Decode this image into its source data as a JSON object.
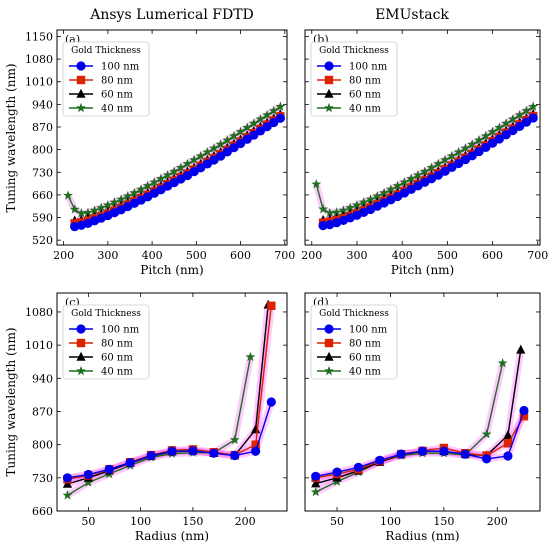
{
  "column_titles": [
    "Ansys Lumerical FDTD",
    "EMUstack"
  ],
  "legend": {
    "title": "Gold Thickness",
    "entries": [
      "100 nm",
      "80 nm",
      "60 nm",
      "40 nm"
    ]
  },
  "colors": {
    "100 nm": "#0000ee",
    "80 nm": "#dd2200",
    "60 nm": "#000000",
    "40 nm": "#1e6e1e",
    "highlight": "#ff66ff"
  },
  "chart_data": [
    {
      "panel": "(a)",
      "type": "line",
      "title": "Ansys Lumerical FDTD",
      "xlabel": "Pitch (nm)",
      "ylabel": "Tuning wavelength (nm)",
      "xlim": [
        185,
        705
      ],
      "ylim": [
        505,
        1170
      ],
      "xticks": [
        200,
        300,
        400,
        500,
        600,
        700
      ],
      "yticks": [
        520,
        590,
        660,
        730,
        800,
        870,
        940,
        1010,
        1080,
        1150
      ],
      "series": [
        {
          "name": "100 nm",
          "marker": "circle",
          "x": [
            225,
            240,
            255,
            270,
            285,
            300,
            315,
            330,
            345,
            360,
            375,
            390,
            405,
            420,
            435,
            450,
            465,
            480,
            495,
            510,
            525,
            540,
            555,
            570,
            585,
            600,
            615,
            630,
            645,
            660,
            675,
            690
          ],
          "y": [
            562,
            566,
            572,
            580,
            588,
            596,
            605,
            614,
            624,
            634,
            644,
            654,
            665,
            676,
            687,
            698,
            709,
            720,
            732,
            744,
            756,
            768,
            780,
            793,
            806,
            819,
            832,
            845,
            858,
            871,
            884,
            897
          ]
        },
        {
          "name": "80 nm",
          "marker": "square",
          "x": [
            225,
            240,
            255,
            270,
            285,
            300,
            315,
            330,
            345,
            360,
            375,
            390,
            405,
            420,
            435,
            450,
            465,
            480,
            495,
            510,
            525,
            540,
            555,
            570,
            585,
            600,
            615,
            630,
            645,
            660,
            675,
            690
          ],
          "y": [
            572,
            575,
            580,
            587,
            594,
            602,
            611,
            620,
            630,
            640,
            650,
            660,
            671,
            682,
            693,
            704,
            715,
            726,
            738,
            750,
            762,
            774,
            786,
            799,
            812,
            825,
            838,
            851,
            864,
            877,
            890,
            903
          ]
        },
        {
          "name": "60 nm",
          "marker": "triangle",
          "x": [
            225,
            240,
            255,
            270,
            285,
            300,
            315,
            330,
            345,
            360,
            375,
            390,
            405,
            420,
            435,
            450,
            465,
            480,
            495,
            510,
            525,
            540,
            555,
            570,
            585,
            600,
            615,
            630,
            645,
            660,
            675,
            690
          ],
          "y": [
            580,
            582,
            587,
            593,
            600,
            608,
            617,
            626,
            636,
            646,
            656,
            666,
            677,
            688,
            699,
            710,
            721,
            732,
            744,
            756,
            768,
            780,
            792,
            805,
            818,
            831,
            844,
            857,
            870,
            883,
            896,
            909
          ]
        },
        {
          "name": "40 nm",
          "marker": "star",
          "x": [
            210,
            225,
            240,
            255,
            270,
            285,
            300,
            315,
            330,
            345,
            360,
            375,
            390,
            405,
            420,
            435,
            450,
            465,
            480,
            495,
            510,
            525,
            540,
            555,
            570,
            585,
            600,
            615,
            630,
            645,
            660,
            675,
            690
          ],
          "y": [
            658,
            615,
            603,
            605,
            612,
            620,
            628,
            637,
            646,
            656,
            666,
            677,
            688,
            699,
            710,
            721,
            732,
            744,
            756,
            768,
            780,
            792,
            804,
            816,
            829,
            842,
            855,
            868,
            881,
            894,
            907,
            920,
            933
          ]
        }
      ]
    },
    {
      "panel": "(b)",
      "type": "line",
      "title": "EMUstack",
      "xlabel": "Pitch (nm)",
      "ylabel": "",
      "xlim": [
        185,
        705
      ],
      "ylim": [
        505,
        1170
      ],
      "xticks": [
        200,
        300,
        400,
        500,
        600,
        700
      ],
      "yticks": [],
      "series": [
        {
          "name": "100 nm",
          "marker": "circle",
          "x": [
            225,
            240,
            255,
            270,
            285,
            300,
            315,
            330,
            345,
            360,
            375,
            390,
            405,
            420,
            435,
            450,
            465,
            480,
            495,
            510,
            525,
            540,
            555,
            570,
            585,
            600,
            615,
            630,
            645,
            660,
            675,
            690
          ],
          "y": [
            565,
            568,
            574,
            581,
            589,
            597,
            606,
            615,
            625,
            635,
            645,
            655,
            666,
            677,
            688,
            699,
            710,
            721,
            733,
            745,
            757,
            769,
            781,
            794,
            807,
            820,
            833,
            846,
            859,
            872,
            885,
            898
          ]
        },
        {
          "name": "80 nm",
          "marker": "square",
          "x": [
            225,
            240,
            255,
            270,
            285,
            300,
            315,
            330,
            345,
            360,
            375,
            390,
            405,
            420,
            435,
            450,
            465,
            480,
            495,
            510,
            525,
            540,
            555,
            570,
            585,
            600,
            615,
            630,
            645,
            660,
            675,
            690
          ],
          "y": [
            574,
            577,
            582,
            588,
            595,
            603,
            612,
            621,
            631,
            641,
            651,
            661,
            672,
            683,
            694,
            705,
            716,
            727,
            739,
            751,
            763,
            775,
            787,
            800,
            813,
            826,
            839,
            852,
            865,
            878,
            891,
            904
          ]
        },
        {
          "name": "60 nm",
          "marker": "triangle",
          "x": [
            225,
            240,
            255,
            270,
            285,
            300,
            315,
            330,
            345,
            360,
            375,
            390,
            405,
            420,
            435,
            450,
            465,
            480,
            495,
            510,
            525,
            540,
            555,
            570,
            585,
            600,
            615,
            630,
            645,
            660,
            675,
            690
          ],
          "y": [
            582,
            584,
            588,
            594,
            601,
            609,
            618,
            627,
            637,
            647,
            657,
            667,
            678,
            689,
            700,
            711,
            722,
            733,
            745,
            757,
            769,
            781,
            793,
            806,
            819,
            832,
            845,
            858,
            871,
            884,
            897,
            910
          ]
        },
        {
          "name": "40 nm",
          "marker": "star",
          "x": [
            210,
            225,
            240,
            255,
            270,
            285,
            300,
            315,
            330,
            345,
            360,
            375,
            390,
            405,
            420,
            435,
            450,
            465,
            480,
            495,
            510,
            525,
            540,
            555,
            570,
            585,
            600,
            615,
            630,
            645,
            660,
            675,
            690
          ],
          "y": [
            693,
            616,
            604,
            606,
            612,
            620,
            628,
            637,
            646,
            656,
            666,
            677,
            688,
            699,
            710,
            721,
            732,
            744,
            756,
            768,
            780,
            792,
            804,
            816,
            829,
            842,
            855,
            868,
            881,
            894,
            907,
            920,
            933
          ]
        }
      ]
    },
    {
      "panel": "(c)",
      "type": "line",
      "title": "",
      "xlabel": "Radius (nm)",
      "ylabel": "Tuning wavelength (nm)",
      "xlim": [
        20,
        240
      ],
      "ylim": [
        660,
        1120
      ],
      "xticks": [
        50,
        100,
        150,
        200
      ],
      "yticks": [
        660,
        730,
        800,
        870,
        940,
        1010,
        1080
      ],
      "series": [
        {
          "name": "100 nm",
          "marker": "circle",
          "x": [
            30,
            50,
            70,
            90,
            110,
            130,
            150,
            170,
            190,
            210,
            225
          ],
          "y": [
            730,
            737,
            748,
            762,
            777,
            786,
            787,
            782,
            777,
            786,
            890
          ]
        },
        {
          "name": "80 nm",
          "marker": "square",
          "x": [
            30,
            50,
            70,
            90,
            110,
            130,
            150,
            170,
            190,
            210,
            225
          ],
          "y": [
            727,
            735,
            748,
            763,
            778,
            788,
            790,
            784,
            778,
            800,
            1093
          ]
        },
        {
          "name": "60 nm",
          "marker": "triangle",
          "x": [
            30,
            50,
            70,
            90,
            110,
            130,
            150,
            170,
            190,
            210,
            222
          ],
          "y": [
            717,
            730,
            745,
            761,
            776,
            785,
            787,
            782,
            777,
            832,
            1095
          ]
        },
        {
          "name": "40 nm",
          "marker": "star",
          "x": [
            30,
            50,
            70,
            90,
            110,
            130,
            150,
            170,
            190,
            205
          ],
          "y": [
            693,
            720,
            738,
            756,
            773,
            781,
            783,
            783,
            810,
            985
          ]
        }
      ]
    },
    {
      "panel": "(d)",
      "type": "line",
      "title": "",
      "xlabel": "Radius (nm)",
      "ylabel": "",
      "xlim": [
        20,
        240
      ],
      "ylim": [
        660,
        1120
      ],
      "xticks": [
        50,
        100,
        150,
        200
      ],
      "yticks": [],
      "series": [
        {
          "name": "100 nm",
          "marker": "circle",
          "x": [
            30,
            50,
            70,
            90,
            110,
            130,
            150,
            170,
            190,
            210,
            225
          ],
          "y": [
            733,
            742,
            752,
            767,
            780,
            786,
            786,
            780,
            770,
            776,
            872
          ]
        },
        {
          "name": "80 nm",
          "marker": "square",
          "x": [
            30,
            50,
            70,
            90,
            110,
            130,
            150,
            170,
            190,
            210,
            225
          ],
          "y": [
            730,
            738,
            748,
            765,
            780,
            787,
            793,
            782,
            777,
            803,
            860
          ]
        },
        {
          "name": "60 nm",
          "marker": "triangle",
          "x": [
            30,
            50,
            70,
            90,
            110,
            130,
            150,
            170,
            190,
            210,
            222
          ],
          "y": [
            718,
            730,
            745,
            763,
            779,
            786,
            786,
            780,
            777,
            820,
            1000
          ]
        },
        {
          "name": "40 nm",
          "marker": "star",
          "x": [
            30,
            50,
            70,
            90,
            110,
            130,
            150,
            170,
            190,
            205
          ],
          "y": [
            700,
            722,
            742,
            764,
            777,
            782,
            782,
            778,
            822,
            972
          ]
        }
      ]
    }
  ]
}
